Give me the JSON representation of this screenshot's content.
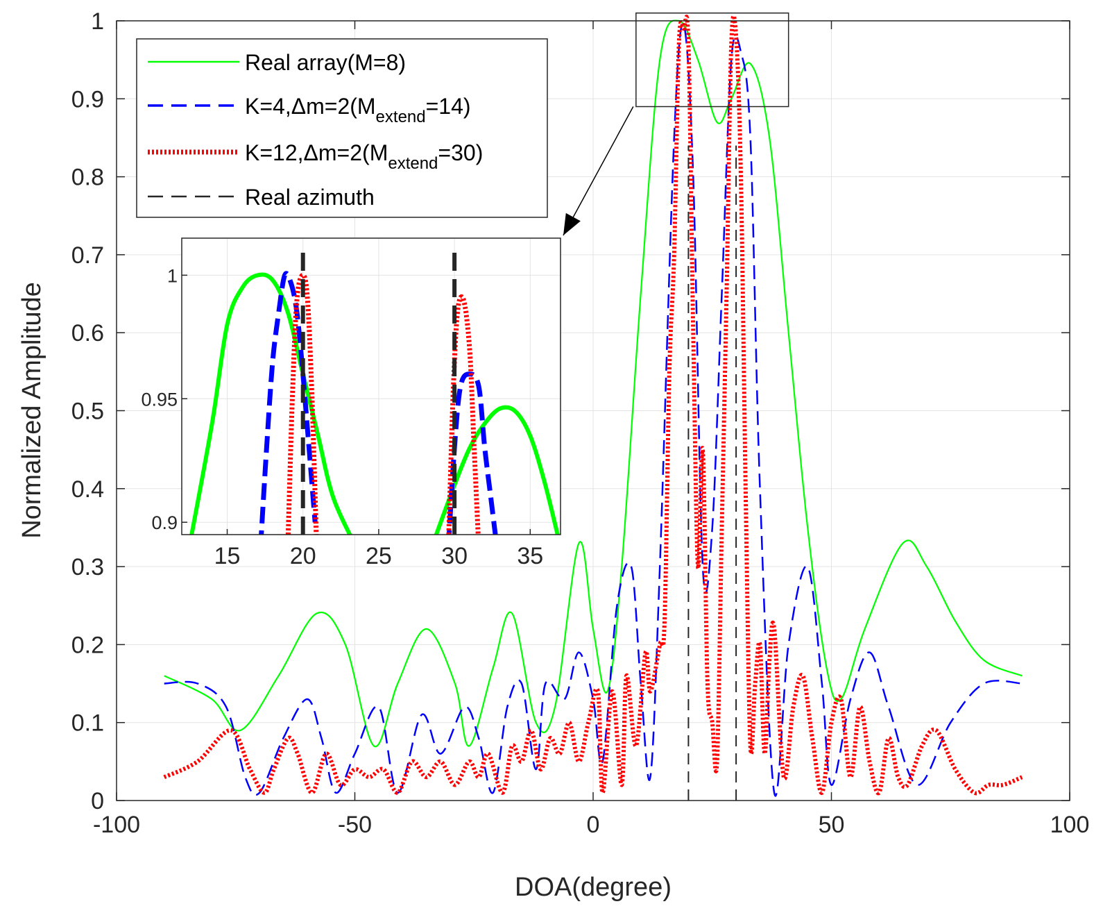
{
  "chart_data": {
    "type": "line",
    "xlabel": "DOA(degree)",
    "ylabel": "Normalized Amplitude",
    "xlim": [
      -100,
      100
    ],
    "ylim": [
      0,
      1
    ],
    "xticks": [
      -100,
      -50,
      0,
      50,
      100
    ],
    "yticks": [
      0,
      0.1,
      0.2,
      0.3,
      0.4,
      0.5,
      0.6,
      0.7,
      0.8,
      0.9,
      1
    ],
    "grid": true,
    "legend": {
      "placement": "top-left",
      "entries": [
        {
          "text": "Real array(M=8)",
          "sub": "",
          "tail": ""
        },
        {
          "text": "K=4,Δm=2(M",
          "sub": "extend",
          "tail": "=14)"
        },
        {
          "text": "K=12,Δm=2(M",
          "sub": "extend",
          "tail": "=30)"
        },
        {
          "text": "Real azimuth",
          "sub": "",
          "tail": ""
        }
      ]
    },
    "series": [
      {
        "name": "Real array(M=8)",
        "color": "#00ff00",
        "style": "solid",
        "x": [
          -90,
          -80,
          -74,
          -66,
          -58,
          -52,
          -46,
          -41,
          -35,
          -29,
          -26,
          -21,
          -17,
          -12,
          -8,
          -3,
          0,
          3,
          6,
          10,
          14,
          18,
          22,
          26,
          29,
          33,
          37,
          41,
          45,
          49,
          52,
          57,
          65,
          70,
          76,
          82,
          90
        ],
        "y": [
          0.16,
          0.13,
          0.09,
          0.16,
          0.24,
          0.2,
          0.07,
          0.15,
          0.22,
          0.15,
          0.07,
          0.17,
          0.24,
          0.1,
          0.12,
          0.33,
          0.22,
          0.14,
          0.3,
          0.65,
          0.95,
          1.0,
          0.95,
          0.87,
          0.9,
          0.945,
          0.85,
          0.6,
          0.35,
          0.17,
          0.13,
          0.22,
          0.33,
          0.3,
          0.23,
          0.18,
          0.16
        ]
      },
      {
        "name": "K=4,Δm=2(M",
        "color": "#0000ff",
        "style": "dashed",
        "x": [
          -90,
          -83,
          -77,
          -73,
          -70,
          -65,
          -60,
          -57,
          -54,
          -50,
          -45,
          -41,
          -36,
          -32,
          -27,
          -24,
          -21,
          -18,
          -15,
          -12,
          -10,
          -6,
          -3,
          0,
          2,
          5,
          8,
          10,
          12,
          14,
          17,
          19,
          21,
          23,
          25,
          27,
          29,
          31,
          33,
          35,
          38,
          41,
          45,
          48,
          50,
          54,
          58,
          62,
          68,
          75,
          82,
          90
        ],
        "y": [
          0.15,
          0.15,
          0.12,
          0.03,
          0.01,
          0.08,
          0.13,
          0.08,
          0.01,
          0.06,
          0.12,
          0.01,
          0.11,
          0.06,
          0.12,
          0.08,
          0.01,
          0.12,
          0.15,
          0.04,
          0.15,
          0.13,
          0.19,
          0.13,
          0.05,
          0.25,
          0.3,
          0.15,
          0.03,
          0.3,
          0.85,
          0.995,
          0.8,
          0.3,
          0.35,
          0.65,
          0.95,
          0.96,
          0.85,
          0.4,
          0.01,
          0.2,
          0.3,
          0.15,
          0.02,
          0.13,
          0.19,
          0.12,
          0.02,
          0.1,
          0.15,
          0.15
        ]
      },
      {
        "name": "K=12,Δm=2(M",
        "color": "#ff0000",
        "style": "dotted",
        "x": [
          -90,
          -83,
          -76,
          -72,
          -69,
          -67,
          -64,
          -62,
          -59,
          -56,
          -53,
          -50,
          -47,
          -44,
          -41,
          -38,
          -35,
          -32,
          -29,
          -26,
          -24,
          -22,
          -19,
          -17,
          -15,
          -13,
          -11,
          -9,
          -7,
          -5,
          -3,
          -1,
          1,
          2,
          4,
          6,
          7,
          9,
          11,
          12,
          14,
          15,
          16,
          17,
          18,
          19,
          20,
          21,
          22,
          23,
          24,
          25,
          26,
          27,
          28,
          29,
          30,
          31,
          32,
          33,
          34,
          35,
          36,
          37,
          38,
          40,
          42,
          44,
          46,
          48,
          50,
          52,
          54,
          56,
          58,
          60,
          62,
          64,
          66,
          69,
          72,
          76,
          80,
          83,
          86,
          90
        ],
        "y": [
          0.03,
          0.05,
          0.09,
          0.04,
          0.01,
          0.04,
          0.08,
          0.06,
          0.01,
          0.06,
          0.02,
          0.04,
          0.03,
          0.04,
          0.01,
          0.05,
          0.03,
          0.05,
          0.02,
          0.05,
          0.03,
          0.06,
          0.01,
          0.07,
          0.05,
          0.09,
          0.04,
          0.08,
          0.06,
          0.1,
          0.05,
          0.1,
          0.14,
          0.01,
          0.14,
          0.02,
          0.16,
          0.07,
          0.19,
          0.14,
          0.2,
          0.23,
          0.55,
          0.7,
          0.97,
          0.99,
          0.97,
          0.6,
          0.3,
          0.45,
          0.15,
          0.1,
          0.05,
          0.35,
          0.65,
          0.97,
          0.98,
          0.8,
          0.4,
          0.07,
          0.15,
          0.2,
          0.06,
          0.18,
          0.22,
          0.03,
          0.12,
          0.16,
          0.08,
          0.01,
          0.1,
          0.13,
          0.03,
          0.12,
          0.05,
          0.01,
          0.08,
          0.03,
          0.02,
          0.07,
          0.09,
          0.04,
          0.01,
          0.02,
          0.02,
          0.03
        ]
      },
      {
        "name": "Real azimuth",
        "color": "#262626",
        "style": "dashed",
        "x_positions": [
          20,
          30
        ]
      }
    ],
    "inset": {
      "xlim": [
        12,
        37
      ],
      "ylim": [
        0.895,
        1.015
      ],
      "xticks": [
        15,
        20,
        25,
        30,
        35
      ],
      "yticks": [
        0.9,
        0.95,
        1
      ],
      "ytick_labels": [
        "0.9",
        "0.95",
        "1"
      ],
      "source_box": {
        "x": [
          9,
          41
        ],
        "y": [
          0.89,
          1.01
        ]
      },
      "series": [
        {
          "ref": 0,
          "x": [
            12.5,
            14,
            15,
            16,
            17,
            18,
            19,
            20,
            21,
            22,
            23.5
          ],
          "y": [
            0.89,
            0.94,
            0.98,
            0.995,
            1.0,
            0.998,
            0.985,
            0.96,
            0.935,
            0.91,
            0.89
          ]
        },
        {
          "ref": 0,
          "x": [
            28.5,
            30,
            31,
            32,
            33,
            34,
            35,
            36,
            37
          ],
          "y": [
            0.89,
            0.915,
            0.93,
            0.94,
            0.946,
            0.945,
            0.935,
            0.915,
            0.89
          ]
        },
        {
          "ref": 1,
          "x": [
            17.2,
            17.6,
            18,
            18.4,
            18.8,
            19.2,
            19.6,
            20,
            20.4,
            20.8
          ],
          "y": [
            0.89,
            0.93,
            0.965,
            0.985,
            1.0,
            0.997,
            0.985,
            0.96,
            0.93,
            0.9
          ]
        },
        {
          "ref": 1,
          "x": [
            29.6,
            30.0,
            30.4,
            31.0,
            31.6,
            32.0,
            32.4,
            32.8
          ],
          "y": [
            0.89,
            0.93,
            0.955,
            0.96,
            0.955,
            0.93,
            0.91,
            0.89
          ]
        },
        {
          "ref": 2,
          "x": [
            19.0,
            19.3,
            19.6,
            20.0,
            20.3,
            20.6,
            20.9
          ],
          "y": [
            0.89,
            0.95,
            0.99,
            1.0,
            0.99,
            0.95,
            0.89
          ]
        },
        {
          "ref": 2,
          "x": [
            29.6,
            29.9,
            30.2,
            30.6,
            31.0,
            31.3,
            31.6
          ],
          "y": [
            0.89,
            0.95,
            0.985,
            0.99,
            0.97,
            0.93,
            0.89
          ]
        }
      ]
    }
  }
}
